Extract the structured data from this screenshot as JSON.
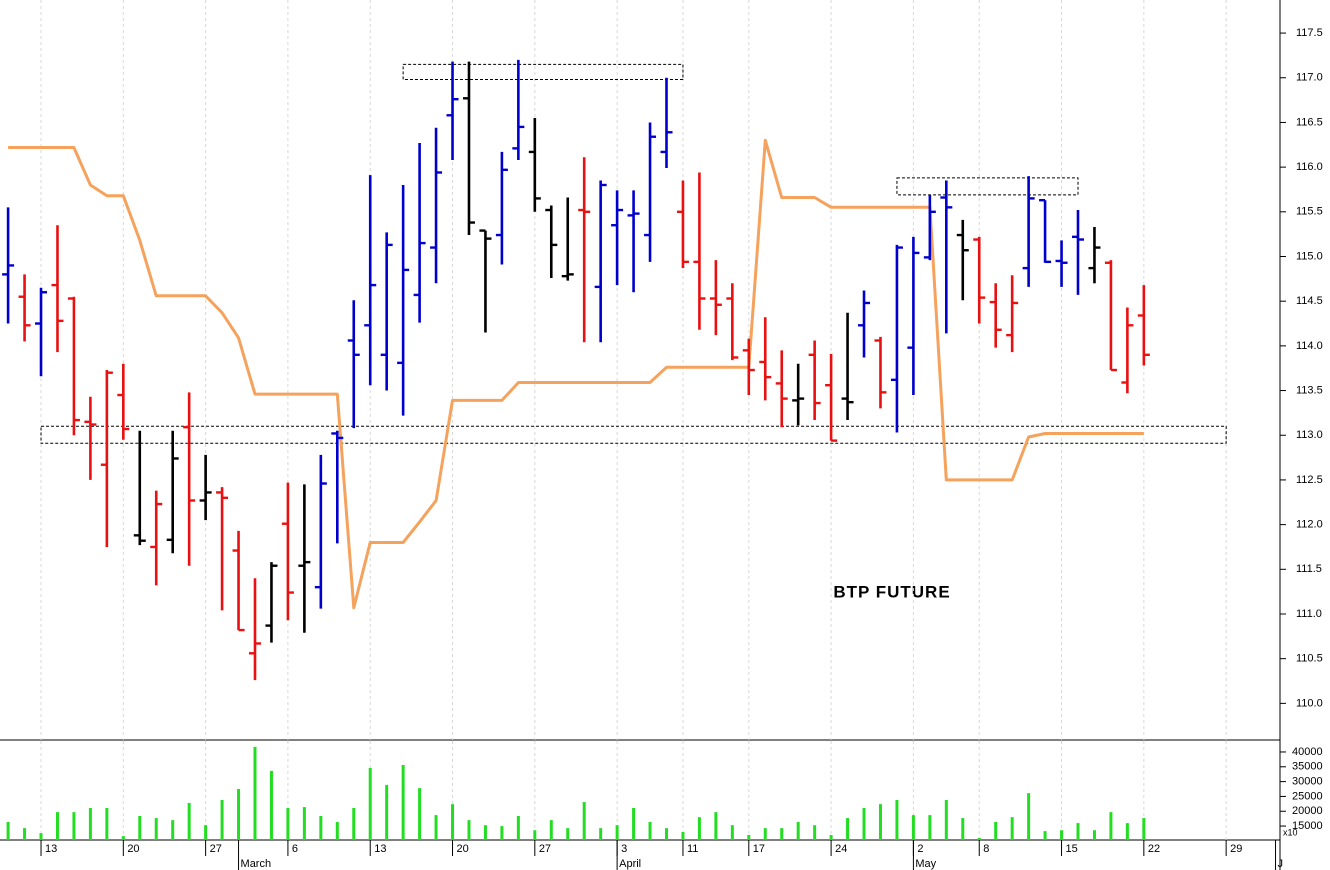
{
  "chart_data": {
    "type": "ohlc",
    "title": "BTP FUTURE",
    "x": [
      null,
      null,
      "13",
      null,
      null,
      null,
      null,
      "20",
      null,
      null,
      null,
      null,
      "27",
      null,
      null,
      null,
      null,
      "6",
      null,
      null,
      null,
      null,
      "13",
      null,
      null,
      null,
      null,
      "20",
      null,
      null,
      null,
      null,
      "27",
      null,
      null,
      null,
      null,
      "3",
      null,
      null,
      null,
      "11",
      null,
      null,
      null,
      "17",
      null,
      null,
      null,
      null,
      "24",
      null,
      null,
      null,
      null,
      "2",
      null,
      null,
      null,
      "8",
      null,
      null,
      null,
      null,
      "15",
      null,
      null,
      null,
      null,
      "22",
      null,
      null,
      null,
      null,
      "29",
      null,
      null,
      null
    ],
    "months": [
      null,
      null,
      null,
      null,
      null,
      null,
      null,
      null,
      null,
      null,
      null,
      null,
      null,
      null,
      "March",
      null,
      null,
      null,
      null,
      null,
      null,
      null,
      null,
      null,
      null,
      null,
      null,
      null,
      null,
      null,
      null,
      null,
      null,
      null,
      null,
      null,
      null,
      "April",
      null,
      null,
      null,
      null,
      null,
      null,
      null,
      null,
      null,
      null,
      null,
      null,
      null,
      null,
      null,
      null,
      null,
      "May",
      null,
      null,
      null,
      null,
      null,
      null,
      null,
      null,
      null,
      null,
      null,
      null,
      null,
      null,
      null,
      null,
      null,
      null,
      null,
      null,
      null,
      "J"
    ],
    "open": [
      114.8,
      114.55,
      114.25,
      114.68,
      114.53,
      113.15,
      112.67,
      113.45,
      111.88,
      111.75,
      111.83,
      113.09,
      112.27,
      112.36,
      111.71,
      110.56,
      110.87,
      112.01,
      111.54,
      111.3,
      113.02,
      114.06,
      114.23,
      113.9,
      113.81,
      114.57,
      115.1,
      116.58,
      116.77,
      115.29,
      115.24,
      116.21,
      116.17,
      115.52,
      114.78,
      115.52,
      114.66,
      115.35,
      115.46,
      115.24,
      116.17,
      115.5,
      114.94,
      114.53,
      114.53,
      113.95,
      113.82,
      113.58,
      113.39,
      113.9,
      113.56,
      113.41,
      114.23,
      114.06,
      113.62,
      113.98,
      114.99,
      115.66,
      115.24,
      115.19,
      114.49,
      114.12,
      114.87,
      115.63,
      114.95,
      115.22,
      114.87,
      114.93,
      113.59,
      114.34,
      null,
      null,
      null,
      null,
      null,
      null,
      null,
      null
    ],
    "high": [
      115.55,
      114.8,
      114.65,
      115.35,
      114.55,
      113.43,
      113.73,
      113.8,
      113.05,
      112.38,
      113.05,
      113.48,
      112.78,
      112.42,
      111.93,
      111.4,
      111.58,
      112.47,
      112.45,
      112.78,
      113.05,
      114.51,
      115.91,
      115.27,
      115.8,
      116.27,
      116.44,
      117.18,
      117.18,
      115.29,
      116.17,
      117.2,
      116.55,
      115.57,
      115.66,
      116.11,
      115.85,
      115.74,
      115.74,
      116.5,
      117.0,
      115.85,
      115.94,
      114.96,
      114.7,
      114.08,
      114.32,
      113.95,
      113.8,
      114.06,
      113.91,
      114.37,
      114.62,
      114.1,
      115.13,
      115.22,
      115.69,
      115.85,
      115.41,
      115.22,
      114.7,
      114.79,
      115.9,
      115.63,
      115.18,
      115.52,
      115.33,
      114.96,
      114.43,
      114.68,
      null,
      null,
      null,
      null,
      null,
      null,
      null,
      null
    ],
    "low": [
      114.25,
      114.05,
      113.66,
      113.93,
      113.0,
      112.5,
      111.75,
      112.95,
      111.77,
      111.32,
      111.68,
      111.54,
      112.05,
      111.04,
      110.82,
      110.26,
      110.68,
      110.93,
      110.79,
      111.06,
      111.79,
      113.08,
      113.56,
      113.5,
      113.22,
      114.26,
      114.7,
      116.08,
      115.24,
      114.15,
      114.91,
      116.08,
      115.5,
      114.76,
      114.73,
      114.04,
      114.04,
      114.68,
      114.6,
      114.94,
      115.99,
      114.87,
      114.18,
      114.12,
      113.84,
      113.45,
      113.39,
      113.09,
      113.11,
      113.17,
      112.94,
      113.17,
      113.87,
      113.3,
      113.03,
      113.45,
      114.96,
      114.14,
      114.51,
      114.25,
      113.98,
      113.93,
      114.66,
      114.93,
      114.66,
      114.57,
      114.7,
      113.73,
      113.47,
      113.78,
      null,
      null,
      null,
      null,
      null,
      null,
      null,
      null
    ],
    "close": [
      114.9,
      114.23,
      114.6,
      114.28,
      113.17,
      113.12,
      113.7,
      113.07,
      111.82,
      112.23,
      112.74,
      112.27,
      112.36,
      112.3,
      110.82,
      110.67,
      111.54,
      111.24,
      111.58,
      112.46,
      112.97,
      113.9,
      114.68,
      115.13,
      114.85,
      115.15,
      115.94,
      116.76,
      115.38,
      115.2,
      115.97,
      116.45,
      115.65,
      115.13,
      114.8,
      115.5,
      115.8,
      115.52,
      115.48,
      116.34,
      116.39,
      114.94,
      114.53,
      114.46,
      113.87,
      113.73,
      113.65,
      113.41,
      113.41,
      113.36,
      112.94,
      113.37,
      114.48,
      113.48,
      115.1,
      115.04,
      115.5,
      115.55,
      115.07,
      114.54,
      114.18,
      114.48,
      115.65,
      114.94,
      114.93,
      115.19,
      115.1,
      113.73,
      114.23,
      113.9,
      null,
      null,
      null,
      null,
      null,
      null,
      null,
      null
    ],
    "colors": [
      "#0000cc",
      "#e81010",
      "#0000cc",
      "#e81010",
      "#e81010",
      "#e81010",
      "#e81010",
      "#e81010",
      "#000000",
      "#e81010",
      "#000000",
      "#e81010",
      "#000000",
      "#e81010",
      "#e81010",
      "#e81010",
      "#000000",
      "#e81010",
      "#000000",
      "#0000cc",
      "#0000cc",
      "#0000cc",
      "#0000cc",
      "#0000cc",
      "#0000cc",
      "#0000cc",
      "#0000cc",
      "#0000cc",
      "#000000",
      "#000000",
      "#0000cc",
      "#0000cc",
      "#000000",
      "#000000",
      "#000000",
      "#e81010",
      "#0000cc",
      "#0000cc",
      "#0000cc",
      "#0000cc",
      "#0000cc",
      "#e81010",
      "#e81010",
      "#e81010",
      "#e81010",
      "#e81010",
      "#e81010",
      "#e81010",
      "#000000",
      "#e81010",
      "#e81010",
      "#000000",
      "#0000cc",
      "#e81010",
      "#0000cc",
      "#0000cc",
      "#0000cc",
      "#0000cc",
      "#000000",
      "#e81010",
      "#e81010",
      "#e81010",
      "#0000cc",
      "#0000cc",
      "#0000cc",
      "#0000cc",
      "#000000",
      "#e81010",
      "#e81010",
      "#e81010",
      null,
      null,
      null,
      null,
      null,
      null,
      null,
      null
    ],
    "line": {
      "color": "#f5a25d",
      "values": [
        116.22,
        116.22,
        116.22,
        116.22,
        116.22,
        115.8,
        115.68,
        115.68,
        115.18,
        114.56,
        114.56,
        114.56,
        114.56,
        114.37,
        114.09,
        113.46,
        113.46,
        113.46,
        113.46,
        113.46,
        113.46,
        111.07,
        111.8,
        111.8,
        111.8,
        112.03,
        112.27,
        113.39,
        113.39,
        113.39,
        113.39,
        113.59,
        113.59,
        113.59,
        113.59,
        113.59,
        113.59,
        113.59,
        113.59,
        113.59,
        113.76,
        113.76,
        113.76,
        113.76,
        113.76,
        113.76,
        116.3,
        115.66,
        115.66,
        115.66,
        115.55,
        115.55,
        115.55,
        115.55,
        115.55,
        115.55,
        115.55,
        112.5,
        112.5,
        112.5,
        112.5,
        112.5,
        112.98,
        113.02,
        113.02,
        113.02,
        113.02,
        113.02,
        113.02,
        113.02,
        null,
        null,
        null,
        null,
        null,
        null,
        null,
        null
      ]
    },
    "zones": [
      {
        "start": 24,
        "end": 41,
        "top": 117.15,
        "bottom": 116.98
      },
      {
        "start": 54,
        "end": 65,
        "top": 115.88,
        "bottom": 115.69
      },
      {
        "start": 2,
        "end": 74,
        "top": 113.1,
        "bottom": 112.91
      }
    ],
    "ylim": [
      109.59,
      117.87
    ],
    "yticks": [
      {
        "value": 110,
        "label": "110.0"
      },
      110.5,
      {
        "value": 111,
        "label": "111.0"
      },
      111.5,
      {
        "value": 112,
        "label": "112.0"
      },
      112.5,
      {
        "value": 113,
        "label": "113.0"
      },
      113.5,
      {
        "value": 114,
        "label": "114.0"
      },
      114.5,
      {
        "value": 115,
        "label": "115.0"
      },
      115.5,
      {
        "value": 116,
        "label": "116.0"
      },
      116.5,
      {
        "value": 117,
        "label": "117.0"
      },
      117.5
    ],
    "grid": true,
    "volume": {
      "color": "#22dd22",
      "unit": "x10",
      "ylim": [
        10300,
        43700
      ],
      "yticks": [
        15000,
        20000,
        25000,
        30000,
        35000,
        40000
      ],
      "values": [
        16400,
        14300,
        12600,
        19700,
        19700,
        21100,
        21100,
        11600,
        18400,
        17700,
        17000,
        22800,
        15300,
        23800,
        27500,
        41700,
        33600,
        21100,
        21400,
        18400,
        16400,
        21100,
        34600,
        28900,
        35600,
        27800,
        18700,
        22400,
        17000,
        15300,
        15000,
        18400,
        13600,
        17000,
        14300,
        23100,
        14300,
        15300,
        21100,
        16400,
        14300,
        13000,
        18000,
        19700,
        15300,
        12000,
        14300,
        14300,
        16400,
        15300,
        12000,
        17700,
        21100,
        22400,
        23800,
        18700,
        18700,
        23800,
        17700,
        11000,
        16400,
        18000,
        26100,
        13300,
        13600,
        16000,
        13600,
        19700,
        16000,
        17700,
        null,
        null,
        null,
        null,
        null,
        null,
        null,
        null
      ]
    }
  }
}
